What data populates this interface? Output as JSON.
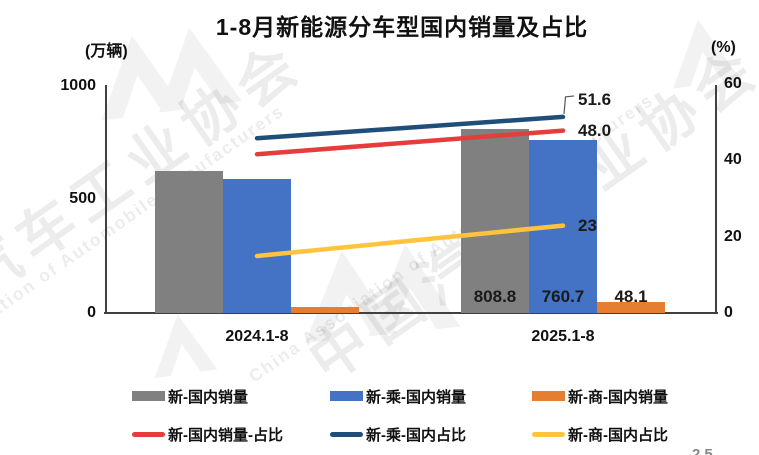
{
  "title": "1-8月新能源分车型国内销量及占比",
  "axes": {
    "left_unit": "(万辆)",
    "right_unit": "(%)",
    "left_ticks": [
      "1000",
      "500",
      "0"
    ],
    "right_ticks": [
      "60",
      "40",
      "20",
      "0"
    ]
  },
  "chart_data": {
    "type": "bar",
    "subtype": "bar-line combo, dual axis",
    "categories": [
      "2024.1-8",
      "2025.1-8"
    ],
    "left_axis": {
      "label": "(万辆)",
      "min": 0,
      "max": 1000,
      "ticks": [
        0,
        500,
        1000
      ]
    },
    "right_axis": {
      "label": "(%)",
      "min": 0,
      "max": 60,
      "ticks": [
        0,
        20,
        40,
        60
      ]
    },
    "legend_position": "bottom",
    "grid": false,
    "bar_series": [
      {
        "name": "新-国内销量",
        "color": "#808080",
        "values": [
          623,
          808.8
        ],
        "labels": [
          "",
          "808.8"
        ]
      },
      {
        "name": "新-乘-国内销量",
        "color": "#4472C4",
        "values": [
          588,
          760.7
        ],
        "labels": [
          "",
          "760.7"
        ]
      },
      {
        "name": "新-商-国内销量",
        "color": "#E57E31",
        "values": [
          26,
          48.1
        ],
        "labels": [
          "",
          "48.1"
        ]
      }
    ],
    "line_series": [
      {
        "name": "新-国内销量-占比",
        "color": "#E63C3C",
        "values": [
          41.8,
          48.0
        ],
        "labels": [
          "",
          "48.0"
        ],
        "leader": false
      },
      {
        "name": "新-乘-国内占比",
        "color": "#1F4E79",
        "values": [
          46.0,
          51.6
        ],
        "labels": [
          "",
          "51.6"
        ],
        "leader": true
      },
      {
        "name": "新-商-国内占比",
        "color": "#FFC33E",
        "values": [
          15.0,
          23.0
        ],
        "labels": [
          "",
          "23"
        ],
        "leader": false
      }
    ]
  },
  "watermark": {
    "cn_partial": "汽车工业协会",
    "cn_full": "中国汽车工业协会",
    "en_partial": "ociation of Automobile Manufacturers",
    "en_full": "China Association of Automobile Manufacturers"
  },
  "page_number": "25"
}
